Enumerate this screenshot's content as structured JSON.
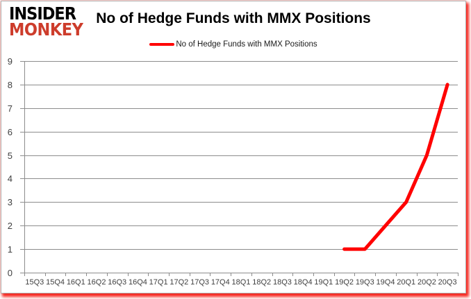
{
  "logo": {
    "line1": "INSIDER",
    "line2": "MONKEY"
  },
  "chart": {
    "title": "No of Hedge Funds with MMX Positions",
    "legend_label": "No of Hedge Funds with MMX Positions"
  },
  "colors": {
    "series_red": "#ff0000",
    "logo_red": "#cd3c2b",
    "gridline": "#8c8c8c",
    "axis_text": "#3f3f3f"
  },
  "chart_data": {
    "type": "line",
    "title": "No of Hedge Funds with MMX Positions",
    "legend": [
      "No of Hedge Funds with MMX Positions"
    ],
    "legend_position": "top",
    "grid": true,
    "xlabel": "",
    "ylabel": "",
    "ylim": [
      0,
      9
    ],
    "ytick_step": 1,
    "categories": [
      "15Q3",
      "15Q4",
      "16Q1",
      "16Q2",
      "16Q3",
      "16Q4",
      "17Q1",
      "17Q2",
      "17Q3",
      "17Q4",
      "18Q1",
      "18Q2",
      "18Q3",
      "18Q4",
      "19Q1",
      "19Q2",
      "19Q3",
      "19Q4",
      "20Q1",
      "20Q2",
      "20Q3"
    ],
    "series": [
      {
        "name": "No of Hedge Funds with MMX Positions",
        "color": "#ff0000",
        "values": [
          null,
          null,
          null,
          null,
          null,
          null,
          null,
          null,
          null,
          null,
          null,
          null,
          null,
          null,
          null,
          1,
          1,
          2,
          3,
          5,
          8
        ]
      }
    ]
  }
}
